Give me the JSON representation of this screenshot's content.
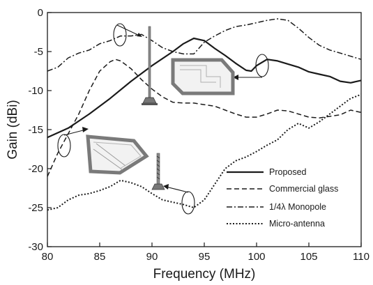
{
  "chart_data": {
    "type": "line",
    "xlabel": "Frequency (MHz)",
    "ylabel": "Gain (dBi)",
    "xlim": [
      80,
      110
    ],
    "ylim": [
      -30,
      0
    ],
    "xticks": [
      "80",
      "85",
      "90",
      "95",
      "100",
      "105",
      "110"
    ],
    "yticks": [
      "0",
      "-5",
      "-10",
      "-15",
      "-20",
      "-25",
      "-30"
    ],
    "grid": false,
    "legend_position": "lower-right",
    "series": [
      {
        "name": "Proposed",
        "style": "solid",
        "x": [
          80,
          82,
          84,
          86,
          88,
          90,
          92,
          93,
          94,
          95,
          96,
          97,
          98,
          99,
          99.5,
          100,
          101,
          102,
          103,
          104,
          105,
          106,
          107,
          108,
          109,
          110
        ],
        "y": [
          -16,
          -14.8,
          -13,
          -11,
          -8.8,
          -6.8,
          -5,
          -4,
          -3.3,
          -3.6,
          -4.6,
          -5.5,
          -6.5,
          -7.4,
          -7.5,
          -6.8,
          -6,
          -6.2,
          -6.6,
          -7,
          -7.6,
          -7.9,
          -8.2,
          -8.8,
          -9,
          -8.7
        ]
      },
      {
        "name": "Commercial glass",
        "style": "dashed",
        "x": [
          80,
          81,
          82,
          83,
          84,
          85,
          86,
          86.5,
          87,
          88,
          89,
          90,
          91,
          92,
          93,
          94,
          95,
          96,
          97,
          98,
          99,
          100,
          101,
          102,
          103,
          104,
          105,
          106,
          107,
          108,
          109,
          110
        ],
        "y": [
          -21,
          -18,
          -15.5,
          -13,
          -10,
          -7.5,
          -6.3,
          -6,
          -6.2,
          -7.2,
          -8.6,
          -9.8,
          -10.8,
          -11.5,
          -11.6,
          -11.6,
          -11.8,
          -12,
          -12.5,
          -13,
          -13.4,
          -13.4,
          -13,
          -12.5,
          -12.6,
          -13,
          -13.4,
          -13.5,
          -13.3,
          -13.1,
          -12.5,
          -12.8
        ]
      },
      {
        "name": "1/4λ Monopole",
        "style": "dashdot",
        "x": [
          80,
          81,
          82,
          83,
          84,
          85,
          86,
          87,
          88,
          89,
          90,
          91,
          92,
          93,
          94,
          95,
          96,
          97,
          98,
          99,
          100,
          101,
          102,
          103,
          104,
          105,
          106,
          107,
          108,
          109,
          110
        ],
        "y": [
          -7.5,
          -7,
          -5.8,
          -5.2,
          -4.8,
          -4,
          -3.6,
          -3,
          -3,
          -2.8,
          -3.6,
          -4.5,
          -5,
          -5.3,
          -5.3,
          -3.8,
          -3,
          -2.3,
          -1.8,
          -1.6,
          -1.3,
          -1,
          -0.8,
          -1,
          -2,
          -3.2,
          -4.2,
          -4.8,
          -5.2,
          -5.6,
          -6
        ]
      },
      {
        "name": "Micro-antenna",
        "style": "dotted",
        "x": [
          80,
          81,
          82,
          83,
          84,
          85,
          86,
          87,
          88,
          89,
          90,
          91,
          92,
          93,
          94,
          95,
          96,
          97,
          98,
          99,
          100,
          101,
          102,
          103,
          104,
          105,
          106,
          107,
          108,
          109,
          110
        ],
        "y": [
          -25.3,
          -25,
          -24,
          -23.4,
          -23.2,
          -22.8,
          -22.3,
          -21.5,
          -21.8,
          -22.3,
          -23.2,
          -24,
          -24.3,
          -24.6,
          -25,
          -24,
          -22,
          -20,
          -19,
          -18.5,
          -17.8,
          -17,
          -16.3,
          -15,
          -14.2,
          -14.8,
          -14,
          -13,
          -12,
          -11,
          -10.5
        ]
      }
    ]
  }
}
